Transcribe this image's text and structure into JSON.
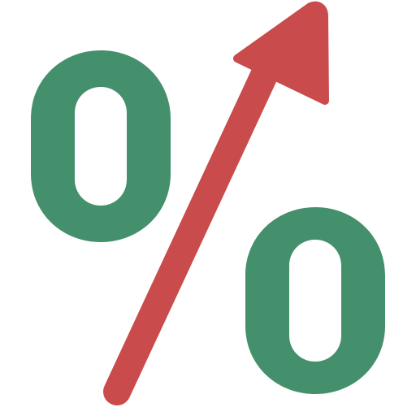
{
  "icon": {
    "name": "percent-increase-icon",
    "colors": {
      "percent_ring": "#45906c",
      "arrow": "#c94b4b",
      "background": "#ffffff"
    }
  }
}
